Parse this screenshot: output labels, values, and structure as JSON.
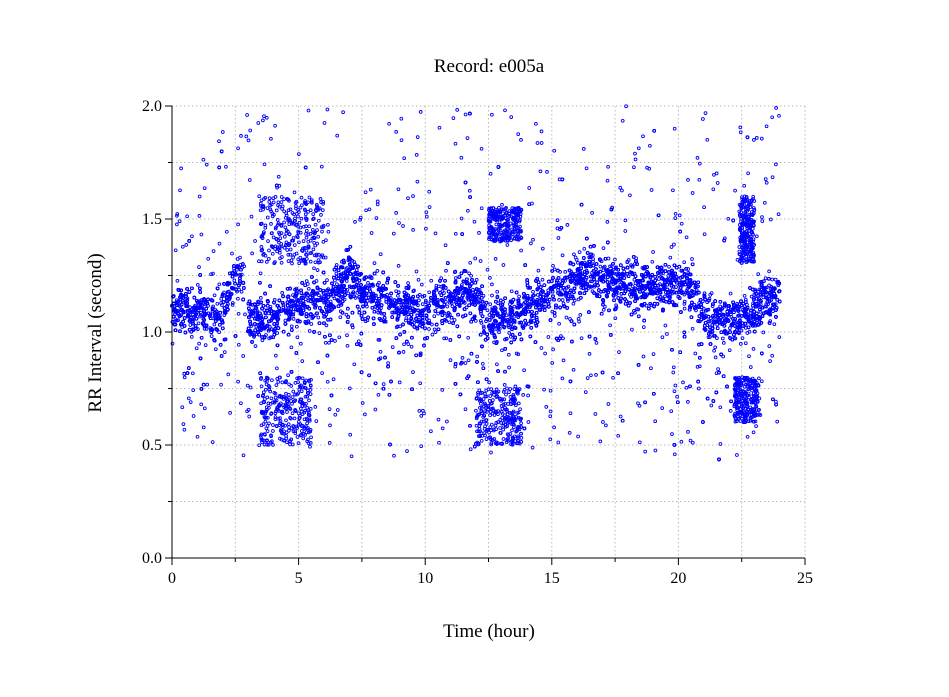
{
  "chart_data": {
    "type": "scatter",
    "title": "Record:  e005a",
    "xlabel": "Time (hour)",
    "ylabel": "RR Interval (second)",
    "xlim": [
      0,
      25
    ],
    "ylim": [
      0,
      2
    ],
    "xticks": [
      0,
      5,
      10,
      15,
      20,
      25
    ],
    "xtick_labels": [
      "0",
      "5",
      "10",
      "15",
      "20",
      "25"
    ],
    "xminor_ticks": [
      2.5,
      7.5,
      12.5,
      17.5,
      22.5
    ],
    "yticks": [
      0,
      0.5,
      1,
      1.5,
      2
    ],
    "ytick_labels": [
      "0.0",
      "0.5",
      "1.0",
      "1.5",
      "2.0"
    ],
    "yminor_ticks": [
      0.25,
      0.75,
      1.25,
      1.75
    ],
    "grid": true,
    "legend": "none",
    "marker_color": "#0000ff",
    "series": [
      {
        "values_description_note": "",
        "x_range": [
          0,
          24
        ],
        "trend": [
          {
            "x": 0.0,
            "y": 1.12
          },
          {
            "x": 0.5,
            "y": 1.1
          },
          {
            "x": 1.0,
            "y": 1.08
          },
          {
            "x": 1.5,
            "y": 1.08
          },
          {
            "x": 2.0,
            "y": 1.1
          },
          {
            "x": 2.3,
            "y": 1.2
          },
          {
            "x": 2.8,
            "y": 1.25
          },
          {
            "x": 3.0,
            "y": 1.06
          },
          {
            "x": 3.5,
            "y": 1.05
          },
          {
            "x": 4.0,
            "y": 1.07
          },
          {
            "x": 4.5,
            "y": 1.08
          },
          {
            "x": 5.0,
            "y": 1.12
          },
          {
            "x": 5.5,
            "y": 1.15
          },
          {
            "x": 6.2,
            "y": 1.13
          },
          {
            "x": 6.5,
            "y": 1.2
          },
          {
            "x": 7.0,
            "y": 1.28
          },
          {
            "x": 7.5,
            "y": 1.18
          },
          {
            "x": 8.5,
            "y": 1.14
          },
          {
            "x": 9.5,
            "y": 1.1
          },
          {
            "x": 10.0,
            "y": 1.07
          },
          {
            "x": 10.5,
            "y": 1.14
          },
          {
            "x": 11.5,
            "y": 1.17
          },
          {
            "x": 12.0,
            "y": 1.15
          },
          {
            "x": 12.5,
            "y": 1.05
          },
          {
            "x": 13.5,
            "y": 1.08
          },
          {
            "x": 14.5,
            "y": 1.14
          },
          {
            "x": 15.5,
            "y": 1.2
          },
          {
            "x": 16.5,
            "y": 1.28
          },
          {
            "x": 17.5,
            "y": 1.22
          },
          {
            "x": 18.5,
            "y": 1.2
          },
          {
            "x": 19.5,
            "y": 1.21
          },
          {
            "x": 20.5,
            "y": 1.2
          },
          {
            "x": 21.0,
            "y": 1.1
          },
          {
            "x": 21.5,
            "y": 1.06
          },
          {
            "x": 22.5,
            "y": 1.06
          },
          {
            "x": 23.0,
            "y": 1.1
          },
          {
            "x": 24.0,
            "y": 1.18
          }
        ],
        "clusters": [
          {
            "x": [
              3.5,
              5.5
            ],
            "y": [
              0.5,
              0.8
            ]
          },
          {
            "x": [
              3.5,
              6.0
            ],
            "y": [
              1.3,
              1.6
            ]
          },
          {
            "x": [
              12.0,
              13.8
            ],
            "y": [
              0.5,
              0.75
            ]
          },
          {
            "x": [
              12.5,
              13.8
            ],
            "y": [
              1.4,
              1.55
            ]
          },
          {
            "x": [
              22.2,
              23.2
            ],
            "y": [
              0.6,
              0.8
            ]
          },
          {
            "x": [
              22.4,
              23.0
            ],
            "y": [
              1.3,
              1.6
            ]
          }
        ],
        "point_count": 9000
      }
    ]
  }
}
